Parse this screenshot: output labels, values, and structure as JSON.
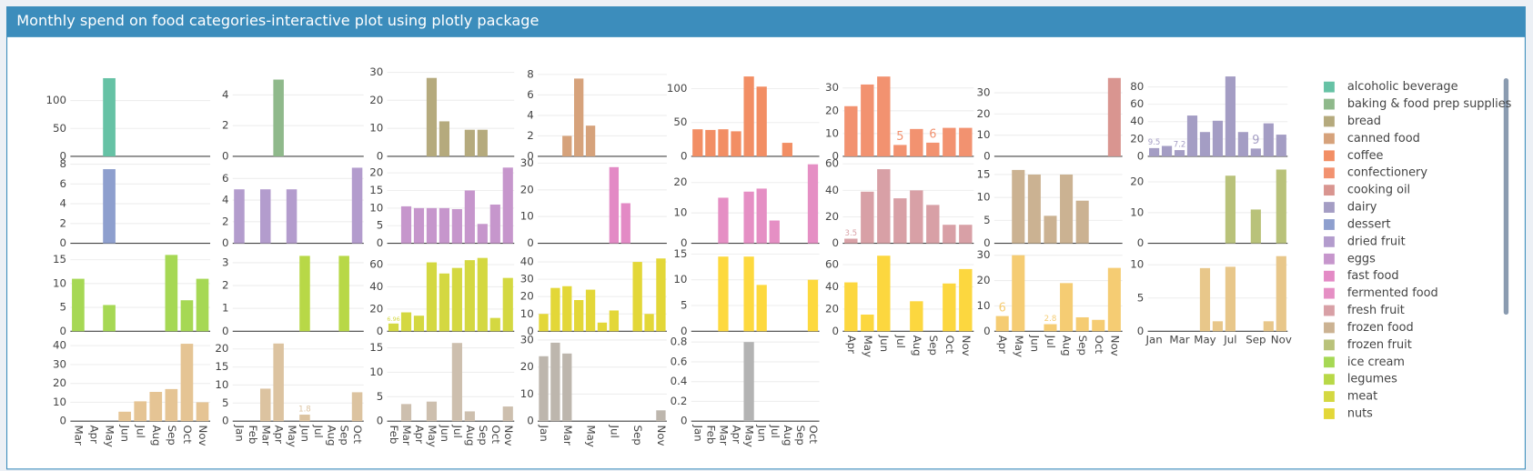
{
  "header": {
    "title": "Monthly spend on food categories-interactive plot using plotly package"
  },
  "chart_data": [
    {
      "type": "bar",
      "categories": [
        "Mar",
        "Apr",
        "May",
        "Jun",
        "Jul",
        "Aug",
        "Sep",
        "Oct",
        "Nov"
      ],
      "series": [
        {
          "name": "alcoholic beverage",
          "color": "#66c2a5",
          "values": [
            null,
            null,
            140,
            null,
            null,
            null,
            null,
            null,
            null
          ],
          "ylim": [
            0,
            154
          ],
          "yticks": [
            0,
            50,
            100
          ]
        },
        {
          "name": "dessert",
          "color": "#8e9fce",
          "values": [
            null,
            null,
            7.5,
            null,
            null,
            null,
            null,
            null,
            null
          ],
          "ylim": [
            0,
            8.3
          ],
          "yticks": [
            0,
            2,
            4,
            6,
            8
          ]
        },
        {
          "name": "ice cream",
          "color": "#a6d854",
          "values": [
            11,
            null,
            5.5,
            null,
            null,
            null,
            16,
            6.5,
            11
          ],
          "ylim": [
            0,
            17
          ],
          "yticks": [
            0,
            5,
            10,
            15
          ]
        },
        {
          "color": "#e5c494",
          "values": [
            null,
            null,
            null,
            5,
            10.5,
            15.5,
            17,
            41,
            10
          ],
          "ylim": [
            0,
            44
          ],
          "yticks": [
            0,
            10,
            20,
            30,
            40
          ]
        }
      ]
    },
    {
      "type": "bar",
      "categories": [
        "Jan",
        "Feb",
        "Mar",
        "Apr",
        "May",
        "Jun",
        "Jul",
        "Aug",
        "Sep",
        "Oct"
      ],
      "series": [
        {
          "name": "baking & food prep supplies",
          "color": "#8fb98b",
          "values": [
            null,
            null,
            null,
            5,
            null,
            null,
            null,
            null,
            null,
            null
          ],
          "ylim": [
            0,
            5.6
          ],
          "yticks": [
            0,
            2,
            4
          ]
        },
        {
          "name": "dried fruit",
          "color": "#b39ccd",
          "values": [
            5,
            null,
            5,
            null,
            5,
            null,
            null,
            null,
            null,
            7
          ],
          "ylim": [
            0,
            7.6
          ],
          "yticks": [
            0,
            2,
            4,
            6
          ]
        },
        {
          "name": "legumes",
          "color": "#b8d847",
          "values": [
            null,
            null,
            null,
            null,
            null,
            3.3,
            null,
            null,
            3.3,
            null
          ],
          "ylim": [
            0,
            3.55
          ],
          "yticks": [
            0,
            1,
            2,
            3
          ]
        },
        {
          "color": "#dcc3a0",
          "values": [
            null,
            null,
            9,
            21.5,
            null,
            1.8,
            null,
            null,
            null,
            8
          ],
          "value_labels": [
            null,
            null,
            null,
            null,
            null,
            "1.8",
            null,
            null,
            null,
            null
          ],
          "ylim": [
            0,
            23
          ],
          "yticks": [
            0,
            5,
            10,
            15,
            20
          ]
        }
      ]
    },
    {
      "type": "bar",
      "categories": [
        "Feb",
        "Mar",
        "Apr",
        "May",
        "Jun",
        "Jul",
        "Aug",
        "Sep",
        "Oct",
        "Nov"
      ],
      "series": [
        {
          "name": "bread",
          "color": "#b5aa7d",
          "values": [
            null,
            null,
            null,
            28,
            12.5,
            null,
            9.5,
            9.5,
            null,
            null
          ],
          "ylim": [
            0,
            30.7
          ],
          "yticks": [
            0,
            10,
            20,
            30
          ]
        },
        {
          "name": "eggs",
          "color": "#c696cc",
          "values": [
            null,
            10.5,
            10,
            10,
            10,
            9.7,
            15,
            5.5,
            11,
            21.5
          ],
          "ylim": [
            0,
            23.3
          ],
          "yticks": [
            0,
            5,
            10,
            15,
            20
          ]
        },
        {
          "name": "meat",
          "color": "#d4d841",
          "values": [
            6.96,
            17,
            14,
            62,
            52,
            57,
            64,
            66,
            12,
            48
          ],
          "value_labels": [
            "6.96",
            null,
            null,
            null,
            null,
            null,
            null,
            null,
            null,
            null
          ],
          "ylim": [
            0,
            73
          ],
          "yticks": [
            0,
            20,
            40,
            60
          ]
        },
        {
          "color": "#cdbfae",
          "values": [
            null,
            3.5,
            null,
            4,
            null,
            16,
            2,
            null,
            null,
            3
          ],
          "ylim": [
            0,
            17
          ],
          "yticks": [
            0,
            5,
            10,
            15
          ]
        }
      ]
    },
    {
      "type": "bar",
      "categories": [
        "Jan",
        null,
        "Mar",
        null,
        "May",
        null,
        "Jul",
        null,
        "Sep",
        null,
        "Nov"
      ],
      "series": [
        {
          "name": "canned food",
          "color": "#d6a27b",
          "values": [
            null,
            null,
            2,
            7.6,
            3,
            null,
            null,
            null,
            null,
            null,
            null
          ],
          "ylim": [
            0,
            8.4
          ],
          "yticks": [
            0,
            2,
            4,
            6,
            8
          ]
        },
        {
          "name": "fast food",
          "color": "#e38ac5",
          "values": [
            null,
            null,
            null,
            null,
            null,
            null,
            28.5,
            15,
            null,
            null,
            null
          ],
          "ylim": [
            0,
            30.7
          ],
          "yticks": [
            0,
            10,
            20,
            30
          ]
        },
        {
          "name": "nuts",
          "color": "#e3d738",
          "values": [
            10,
            25,
            26,
            18,
            24,
            5,
            12,
            null,
            40,
            10,
            42
          ],
          "ylim": [
            0,
            46.8
          ],
          "yticks": [
            0,
            10,
            20,
            30,
            40
          ]
        },
        {
          "color": "#bdb6ad",
          "values": [
            24,
            29,
            25,
            null,
            null,
            null,
            null,
            null,
            null,
            null,
            4
          ],
          "ylim": [
            0,
            30.7
          ],
          "yticks": [
            0,
            10,
            20,
            30
          ]
        }
      ]
    },
    {
      "type": "bar",
      "categories": [
        "Jan",
        "Feb",
        "Mar",
        "Apr",
        "May",
        "Jun",
        "Jul",
        "Aug",
        "Sep",
        "Oct"
      ],
      "series": [
        {
          "name": "coffee",
          "color": "#f28e64",
          "values": [
            40,
            39,
            40,
            37,
            118,
            103,
            null,
            20,
            null,
            null
          ],
          "ylim": [
            0,
            127
          ],
          "yticks": [
            0,
            50,
            100
          ]
        },
        {
          "name": "fermented food",
          "color": "#e58fc4",
          "values": [
            null,
            null,
            15,
            null,
            17,
            18,
            7.5,
            null,
            null,
            26
          ],
          "ylim": [
            0,
            27
          ],
          "yticks": [
            0,
            10,
            20
          ]
        },
        {
          "color": "#fdd93e",
          "values": [
            null,
            null,
            14.5,
            null,
            14.5,
            9,
            null,
            null,
            null,
            10
          ],
          "ylim": [
            0,
            15.75
          ],
          "yticks": [
            0,
            5,
            10,
            15
          ]
        },
        {
          "color": "#b3b3b3",
          "values": [
            null,
            null,
            null,
            null,
            0.8,
            null,
            null,
            null,
            null,
            null
          ],
          "ylim": [
            0,
            0.84
          ],
          "yticks": [
            0,
            0.2,
            0.4,
            0.6,
            0.8
          ]
        }
      ]
    },
    {
      "type": "bar",
      "categories": [
        "Apr",
        "May",
        "Jun",
        "Jul",
        "Aug",
        "Sep",
        "Oct",
        "Nov"
      ],
      "series": [
        {
          "name": "confectionery",
          "color": "#f29270",
          "values": [
            22,
            31.5,
            35,
            5,
            12,
            6,
            12.5,
            12.5
          ],
          "value_labels": [
            null,
            null,
            null,
            "5",
            null,
            "6",
            null,
            null
          ],
          "ylim": [
            0,
            37.7
          ],
          "yticks": [
            0,
            10,
            20,
            30
          ]
        },
        {
          "name": "fresh fruit",
          "color": "#d8a0a6",
          "values": [
            3.5,
            39,
            56,
            34,
            40,
            29,
            14,
            14
          ],
          "value_labels": [
            "3.5",
            null,
            null,
            null,
            null,
            null,
            null,
            null
          ],
          "ylim": [
            0,
            62
          ],
          "yticks": [
            0,
            20,
            40,
            60
          ]
        },
        {
          "color": "#fcd73f",
          "values": [
            44,
            15,
            68,
            null,
            27,
            null,
            43,
            56
          ],
          "ylim": [
            0,
            73
          ],
          "yticks": [
            0,
            20,
            40,
            60
          ]
        }
      ]
    },
    {
      "type": "bar",
      "categories": [
        "Apr",
        "May",
        "Jun",
        "Jul",
        "Aug",
        "Sep",
        "Oct",
        "Nov"
      ],
      "series": [
        {
          "name": "cooking oil",
          "color": "#d99590",
          "values": [
            null,
            null,
            null,
            null,
            null,
            null,
            null,
            37
          ],
          "ylim": [
            0,
            40.6
          ],
          "yticks": [
            0,
            10,
            20,
            30
          ]
        },
        {
          "name": "frozen food",
          "color": "#cbb292",
          "values": [
            null,
            16,
            15,
            6,
            15,
            9.3,
            null,
            null
          ],
          "ylim": [
            0,
            17.9
          ],
          "yticks": [
            0,
            5,
            10,
            15
          ]
        },
        {
          "color": "#f5cc73",
          "values": [
            6,
            30,
            null,
            2.8,
            19,
            5.5,
            4.5,
            25
          ],
          "value_labels": [
            "6",
            null,
            null,
            "2.8",
            null,
            null,
            null,
            null
          ],
          "ylim": [
            0,
            32
          ],
          "yticks": [
            0,
            10,
            20,
            30
          ]
        }
      ]
    },
    {
      "type": "bar",
      "categories": [
        "Jan",
        null,
        "Mar",
        null,
        "May",
        null,
        "Jul",
        null,
        "Sep",
        null,
        "Nov"
      ],
      "series": [
        {
          "name": "dairy",
          "color": "#a49dc4",
          "values": [
            9.5,
            12,
            7.2,
            47,
            28,
            41,
            92,
            28,
            9,
            38,
            25
          ],
          "value_labels": [
            "9.5",
            null,
            "7.2",
            null,
            null,
            null,
            null,
            null,
            "9",
            null,
            null
          ],
          "ylim": [
            0,
            99
          ],
          "yticks": [
            0,
            20,
            40,
            60,
            80
          ]
        },
        {
          "name": "frozen fruit",
          "color": "#b9c27a",
          "values": [
            null,
            null,
            null,
            null,
            null,
            null,
            22,
            null,
            11,
            null,
            24
          ],
          "ylim": [
            0,
            26.7
          ],
          "yticks": [
            0,
            10,
            20
          ]
        },
        {
          "color": "#e8c78a",
          "values": [
            null,
            null,
            null,
            null,
            9.5,
            1.5,
            9.7,
            null,
            null,
            1.5,
            11.3
          ],
          "ylim": [
            0,
            12.2
          ],
          "yticks": [
            0,
            5,
            10
          ]
        }
      ]
    }
  ]
}
